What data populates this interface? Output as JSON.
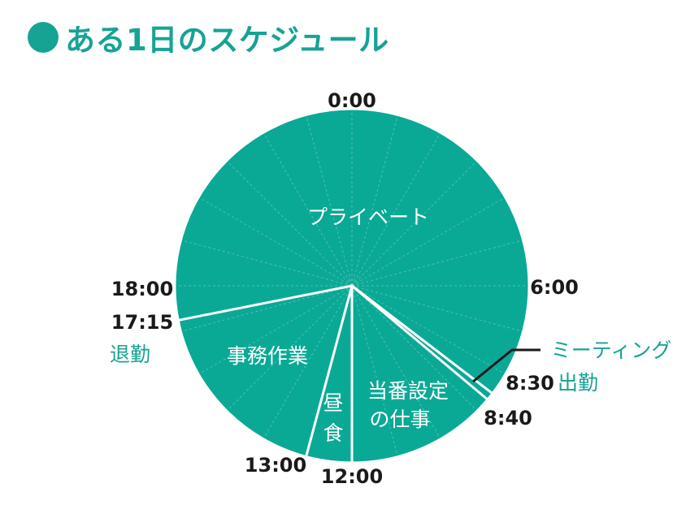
{
  "title": "ある1日のスケジュール",
  "colors": {
    "accent": "#16a394",
    "pie": "#0aa996",
    "text": "#1a1a1a"
  },
  "chart_data": {
    "type": "pie",
    "title": "ある1日のスケジュール",
    "unit": "24-hour day",
    "segments": [
      {
        "label": "プライベート",
        "start": "0:00",
        "end": "8:30",
        "start_h": 0,
        "end_h": 8.5
      },
      {
        "label": "",
        "start": "8:30",
        "end": "8:40",
        "start_h": 8.5,
        "end_h": 8.667
      },
      {
        "label": "当番設定の仕事",
        "start": "8:40",
        "end": "12:00",
        "start_h": 8.667,
        "end_h": 12
      },
      {
        "label": "昼食",
        "start": "12:00",
        "end": "13:00",
        "start_h": 12,
        "end_h": 13
      },
      {
        "label": "事務作業",
        "start": "13:00",
        "end": "17:15",
        "start_h": 13,
        "end_h": 17.25
      },
      {
        "label": "プライベート",
        "start": "17:15",
        "end": "24:00",
        "start_h": 17.25,
        "end_h": 24
      }
    ],
    "time_labels": [
      "0:00",
      "6:00",
      "8:30",
      "8:40",
      "12:00",
      "13:00",
      "17:15",
      "18:00"
    ],
    "annotations": [
      "ミーティング",
      "出勤",
      "退勤"
    ],
    "texts": {
      "t0000": "0:00",
      "t0600": "6:00",
      "t1800": "18:00",
      "t1715": "17:15",
      "t1300": "13:00",
      "t1200": "12:00",
      "t0830": "8:30",
      "t0840": "8:40",
      "meeting": "ミーティング",
      "arrive": "出勤",
      "leave": "退勤",
      "private": "プライベート",
      "office_work": "事務作業",
      "lunch_1": "昼",
      "lunch_2": "食",
      "duty_1": "当番設定",
      "duty_2": "の仕事"
    }
  }
}
